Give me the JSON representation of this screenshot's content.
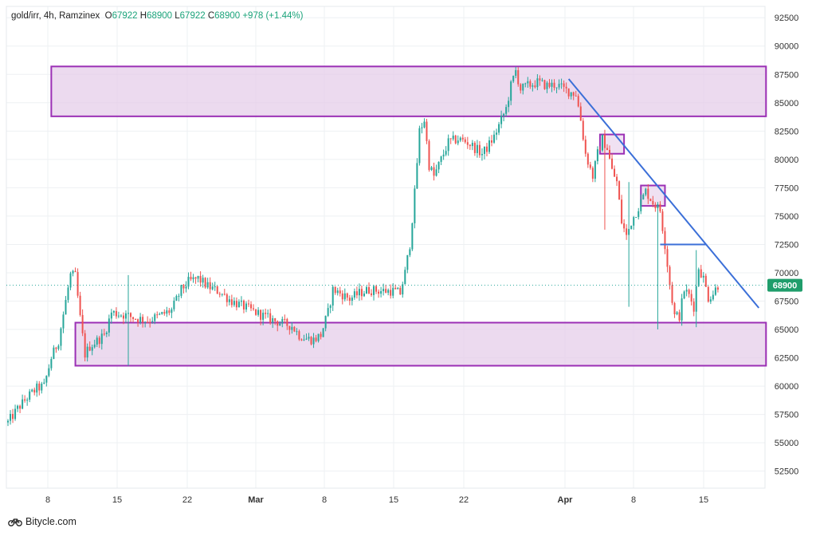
{
  "legend": {
    "symbol": "gold/irr, 4h, Ramzinex",
    "o_label": "O",
    "o": "67922",
    "h_label": "H",
    "h": "68900",
    "l_label": "L",
    "l": "67922",
    "c_label": "C",
    "c": "68900",
    "change": "+978 (+1.44%)"
  },
  "brand": {
    "name": "Bitycle.com",
    "icon": "bicycle-icon"
  },
  "colors": {
    "up": "#26a69a",
    "down": "#ef5350",
    "zone_fill": "#e6cdea",
    "zone_stroke": "#9b30b5",
    "trend": "#3b6fd8",
    "last_price_bg": "#1f9d6b"
  },
  "chart_data": {
    "type": "candlestick",
    "last_price": "68900",
    "y_ticks": [
      "92500",
      "90000",
      "87500",
      "85000",
      "82500",
      "80000",
      "77500",
      "75000",
      "72500",
      "70000",
      "67500",
      "65000",
      "62500",
      "60000",
      "57500",
      "55000",
      "52500"
    ],
    "ylim": [
      51000,
      93500
    ],
    "x_ticks": [
      "8",
      "15",
      "22",
      "Mar",
      "8",
      "15",
      "22",
      "Apr",
      "8",
      "15"
    ],
    "grid": true,
    "path": [
      [
        0,
        56800
      ],
      [
        4,
        58000
      ],
      [
        8,
        59000
      ],
      [
        12,
        59800
      ],
      [
        15,
        60000
      ],
      [
        18,
        62500
      ],
      [
        21,
        64000
      ],
      [
        24,
        67500
      ],
      [
        26,
        69800
      ],
      [
        28,
        69700
      ],
      [
        30,
        66000
      ],
      [
        32,
        62800
      ],
      [
        34,
        63500
      ],
      [
        37,
        64000
      ],
      [
        40,
        64500
      ],
      [
        43,
        66500
      ],
      [
        48,
        66300
      ],
      [
        53,
        66000
      ],
      [
        58,
        65800
      ],
      [
        63,
        66200
      ],
      [
        68,
        66700
      ],
      [
        72,
        68500
      ],
      [
        75,
        69200
      ],
      [
        79,
        69500
      ],
      [
        83,
        68800
      ],
      [
        88,
        68300
      ],
      [
        93,
        67500
      ],
      [
        98,
        67000
      ],
      [
        103,
        66500
      ],
      [
        108,
        66000
      ],
      [
        113,
        65600
      ],
      [
        118,
        65300
      ],
      [
        121,
        64500
      ],
      [
        124,
        64200
      ],
      [
        127,
        64100
      ],
      [
        130,
        64500
      ],
      [
        133,
        66500
      ],
      [
        135,
        68500
      ],
      [
        138,
        68200
      ],
      [
        142,
        67700
      ],
      [
        146,
        68200
      ],
      [
        150,
        68500
      ],
      [
        155,
        68400
      ],
      [
        160,
        68400
      ],
      [
        163,
        68200
      ],
      [
        165,
        70000
      ],
      [
        167,
        72500
      ],
      [
        169,
        77000
      ],
      [
        171,
        82500
      ],
      [
        173,
        83500
      ],
      [
        175,
        79500
      ],
      [
        177,
        78500
      ],
      [
        180,
        80000
      ],
      [
        183,
        81500
      ],
      [
        187,
        81800
      ],
      [
        191,
        81500
      ],
      [
        194,
        81000
      ],
      [
        197,
        80500
      ],
      [
        199,
        81000
      ],
      [
        202,
        82000
      ],
      [
        205,
        83500
      ],
      [
        207,
        84500
      ],
      [
        209,
        86500
      ],
      [
        211,
        87800
      ],
      [
        213,
        86200
      ],
      [
        216,
        86500
      ],
      [
        220,
        86800
      ],
      [
        224,
        86500
      ],
      [
        228,
        86600
      ],
      [
        231,
        86200
      ],
      [
        233,
        86000
      ],
      [
        236,
        85800
      ],
      [
        238,
        83500
      ],
      [
        240,
        80500
      ],
      [
        243,
        78500
      ],
      [
        245,
        80500
      ],
      [
        247,
        81800
      ],
      [
        249,
        81000
      ],
      [
        251,
        79000
      ],
      [
        253,
        78000
      ],
      [
        255,
        74500
      ],
      [
        257,
        73200
      ],
      [
        259,
        74500
      ],
      [
        262,
        75800
      ],
      [
        265,
        77200
      ],
      [
        268,
        76200
      ],
      [
        271,
        75500
      ],
      [
        273,
        72500
      ],
      [
        275,
        69000
      ],
      [
        277,
        66200
      ],
      [
        279,
        66200
      ],
      [
        281,
        68500
      ],
      [
        283,
        68000
      ],
      [
        285,
        67000
      ],
      [
        287,
        70500
      ],
      [
        289,
        69500
      ],
      [
        291,
        67800
      ],
      [
        293,
        68200
      ],
      [
        295,
        68900
      ]
    ],
    "wicks": [
      {
        "index": 50,
        "low": 61800,
        "high": 69800
      },
      {
        "index": 248,
        "low": 73800,
        "high": 82000
      },
      {
        "index": 258,
        "low": 67000,
        "high": 78000
      },
      {
        "index": 270,
        "low": 65000,
        "high": 76000
      },
      {
        "index": 286,
        "low": 65200,
        "high": 72000
      }
    ],
    "zones": [
      {
        "name": "resistance-zone",
        "start": 18,
        "end": 315,
        "low": 83800,
        "high": 88200
      },
      {
        "name": "support-zone",
        "start": 28,
        "end": 315,
        "low": 61800,
        "high": 65600
      },
      {
        "name": "small-zone-1",
        "start": 246,
        "end": 256,
        "low": 80500,
        "high": 82200
      },
      {
        "name": "small-zone-2",
        "start": 263,
        "end": 273,
        "low": 75900,
        "high": 77700
      }
    ],
    "trendline": {
      "from": [
        233,
        87100
      ],
      "to": [
        312,
        66900
      ]
    },
    "hline": {
      "from": 271,
      "to": 290,
      "price": 72500
    }
  }
}
